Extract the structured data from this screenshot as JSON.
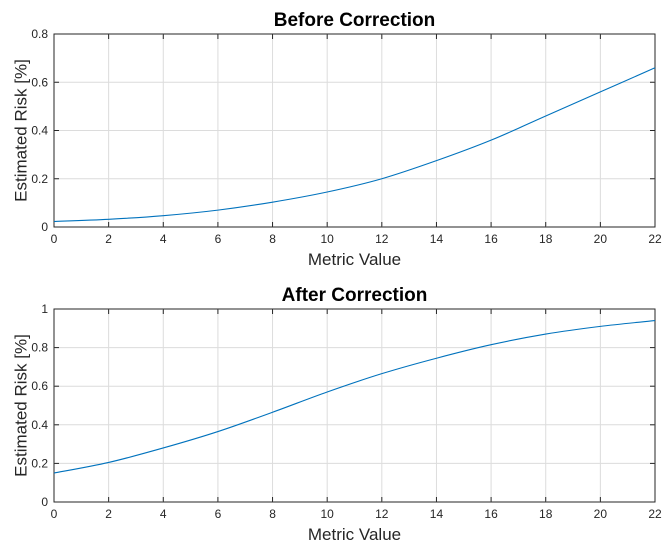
{
  "chart_data": [
    {
      "type": "line",
      "title": "Before Correction",
      "xlabel": "Metric Value",
      "ylabel": "Estimated Risk [%]",
      "xlim": [
        0,
        22
      ],
      "ylim": [
        0,
        0.8
      ],
      "xticks": [
        0,
        2,
        4,
        6,
        8,
        10,
        12,
        14,
        16,
        18,
        20,
        22
      ],
      "yticks": [
        0,
        0.2,
        0.4,
        0.6,
        0.8
      ],
      "xtick_labels": [
        "0",
        "2",
        "4",
        "6",
        "8",
        "10",
        "12",
        "14",
        "16",
        "18",
        "20",
        "22"
      ],
      "ytick_labels": [
        "0",
        "0.2",
        "0.4",
        "0.6",
        "0.8"
      ],
      "grid": true,
      "series": [
        {
          "color": "#0072bd",
          "x": [
            0,
            2,
            4,
            6,
            8,
            10,
            12,
            14,
            16,
            18,
            20,
            22
          ],
          "y": [
            0.023,
            0.032,
            0.047,
            0.07,
            0.103,
            0.145,
            0.2,
            0.275,
            0.36,
            0.46,
            0.56,
            0.66
          ]
        }
      ]
    },
    {
      "type": "line",
      "title": "After Correction",
      "xlabel": "Metric Value",
      "ylabel": "Estimated Risk [%]",
      "xlim": [
        0,
        22
      ],
      "ylim": [
        0,
        1
      ],
      "xticks": [
        0,
        2,
        4,
        6,
        8,
        10,
        12,
        14,
        16,
        18,
        20,
        22
      ],
      "yticks": [
        0,
        0.2,
        0.4,
        0.6,
        0.8,
        1
      ],
      "xtick_labels": [
        "0",
        "2",
        "4",
        "6",
        "8",
        "10",
        "12",
        "14",
        "16",
        "18",
        "20",
        "22"
      ],
      "ytick_labels": [
        "0",
        "0.2",
        "0.4",
        "0.6",
        "0.8",
        "1"
      ],
      "grid": true,
      "series": [
        {
          "color": "#0072bd",
          "x": [
            0,
            2,
            4,
            6,
            8,
            10,
            12,
            14,
            16,
            18,
            20,
            22
          ],
          "y": [
            0.15,
            0.205,
            0.28,
            0.365,
            0.465,
            0.57,
            0.665,
            0.745,
            0.815,
            0.87,
            0.91,
            0.94
          ]
        }
      ]
    }
  ]
}
